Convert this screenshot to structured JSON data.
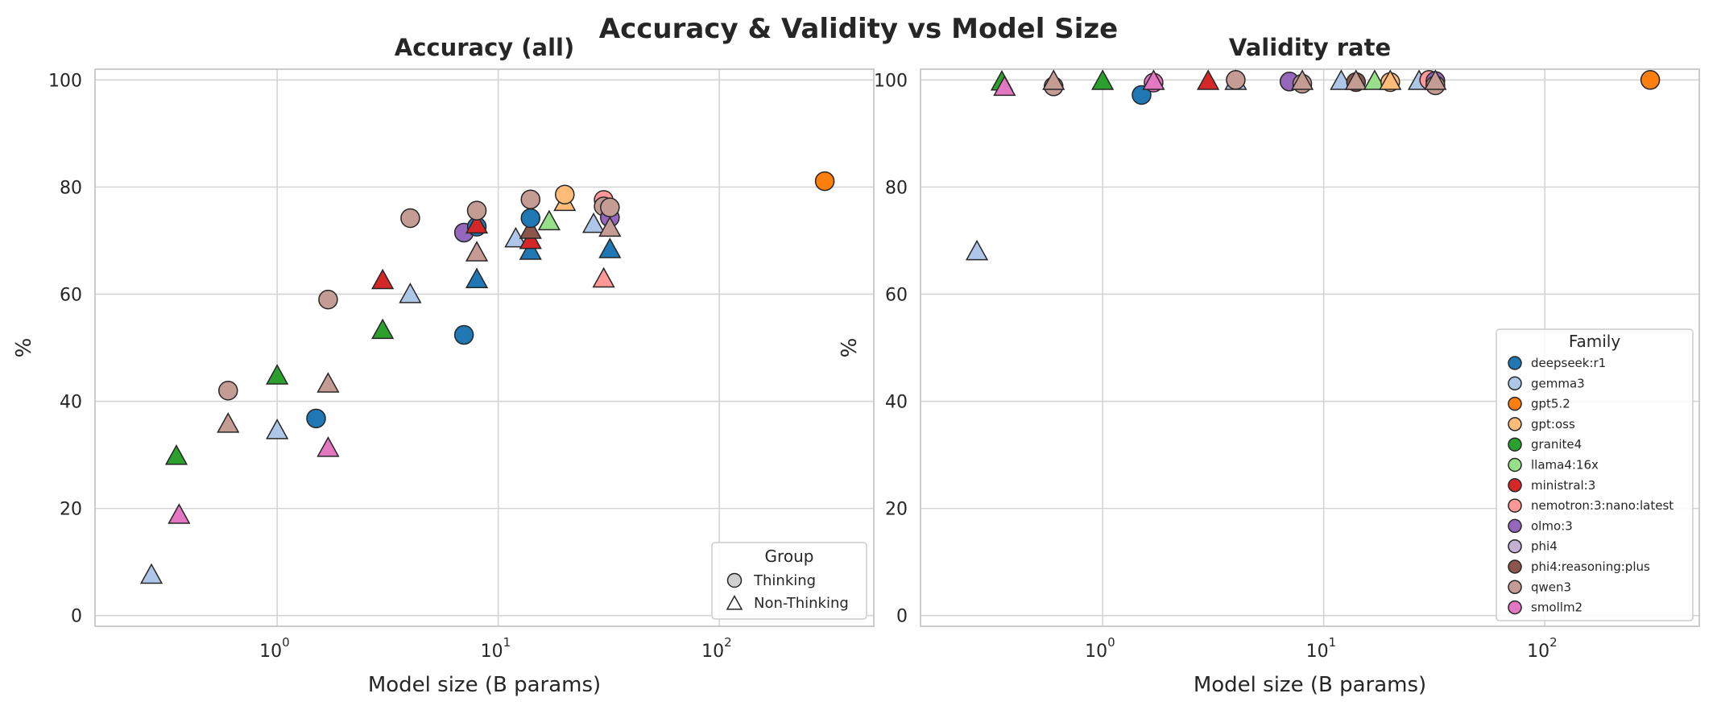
{
  "figure_title": "Accuracy & Validity vs Model Size",
  "colors": {
    "deepseek:r1": "#1f77b4",
    "gemma3": "#aec7e8",
    "gpt5.2": "#ff7f0e",
    "gpt:oss": "#ffbb78",
    "granite4": "#2ca02c",
    "llama4:16x": "#98df8a",
    "ministral:3": "#d62728",
    "nemotron:3:nano:latest": "#ff9896",
    "olmo:3": "#9467bd",
    "phi4": "#c5b0d5",
    "phi4:reasoning:plus": "#8c564b",
    "qwen3": "#c49c94",
    "smollm2": "#e377c2"
  },
  "chart_data": [
    {
      "type": "scatter",
      "title": "Accuracy (all)",
      "xlabel": "Model size (B params)",
      "ylabel": "%",
      "xscale": "log",
      "xlim": [
        0.15,
        500
      ],
      "ylim": [
        -2,
        102
      ],
      "x_ticks": [
        {
          "base": "10",
          "exp": "0",
          "value": 1
        },
        {
          "base": "10",
          "exp": "1",
          "value": 10
        },
        {
          "base": "10",
          "exp": "2",
          "value": 100
        }
      ],
      "y_ticks": [
        "0",
        "20",
        "40",
        "60",
        "80",
        "100"
      ],
      "grid": true,
      "legend": {
        "title": "Group",
        "placement": "lower-right",
        "entries": [
          {
            "label": "Thinking",
            "shape": "circle"
          },
          {
            "label": "Non-Thinking",
            "shape": "triangle"
          }
        ]
      },
      "points": [
        {
          "family": "gemma3",
          "group": "Non-Thinking",
          "x": 0.27,
          "y": 7.8
        },
        {
          "family": "smollm2",
          "group": "Non-Thinking",
          "x": 0.36,
          "y": 19
        },
        {
          "family": "granite4",
          "group": "Non-Thinking",
          "x": 0.35,
          "y": 30
        },
        {
          "family": "qwen3",
          "group": "Thinking",
          "x": 0.6,
          "y": 42
        },
        {
          "family": "qwen3",
          "group": "Non-Thinking",
          "x": 0.6,
          "y": 36
        },
        {
          "family": "gemma3",
          "group": "Non-Thinking",
          "x": 1.0,
          "y": 34.8
        },
        {
          "family": "granite4",
          "group": "Non-Thinking",
          "x": 1.0,
          "y": 45
        },
        {
          "family": "deepseek:r1",
          "group": "Thinking",
          "x": 1.5,
          "y": 36.8
        },
        {
          "family": "smollm2",
          "group": "Non-Thinking",
          "x": 1.7,
          "y": 31.5
        },
        {
          "family": "qwen3",
          "group": "Non-Thinking",
          "x": 1.7,
          "y": 43.5
        },
        {
          "family": "qwen3",
          "group": "Thinking",
          "x": 1.7,
          "y": 59
        },
        {
          "family": "granite4",
          "group": "Non-Thinking",
          "x": 3.0,
          "y": 53.5
        },
        {
          "family": "ministral:3",
          "group": "Non-Thinking",
          "x": 3.0,
          "y": 62.8
        },
        {
          "family": "gemma3",
          "group": "Non-Thinking",
          "x": 4.0,
          "y": 60.2
        },
        {
          "family": "qwen3",
          "group": "Thinking",
          "x": 4.0,
          "y": 74.2
        },
        {
          "family": "deepseek:r1",
          "group": "Thinking",
          "x": 7.0,
          "y": 52.4
        },
        {
          "family": "olmo:3",
          "group": "Thinking",
          "x": 7.0,
          "y": 71.5
        },
        {
          "family": "deepseek:r1",
          "group": "Non-Thinking",
          "x": 8.0,
          "y": 63
        },
        {
          "family": "qwen3",
          "group": "Non-Thinking",
          "x": 8.0,
          "y": 68
        },
        {
          "family": "deepseek:r1",
          "group": "Thinking",
          "x": 8.0,
          "y": 72.6
        },
        {
          "family": "ministral:3",
          "group": "Non-Thinking",
          "x": 8.0,
          "y": 73.2
        },
        {
          "family": "qwen3",
          "group": "Thinking",
          "x": 8.0,
          "y": 75.6
        },
        {
          "family": "gemma3",
          "group": "Non-Thinking",
          "x": 12.0,
          "y": 70.6
        },
        {
          "family": "deepseek:r1",
          "group": "Non-Thinking",
          "x": 14.0,
          "y": 68.3
        },
        {
          "family": "ministral:3",
          "group": "Non-Thinking",
          "x": 14.0,
          "y": 70.3
        },
        {
          "family": "phi4:reasoning:plus",
          "group": "Non-Thinking",
          "x": 14.0,
          "y": 72.2
        },
        {
          "family": "deepseek:r1",
          "group": "Thinking",
          "x": 14.0,
          "y": 74.2
        },
        {
          "family": "qwen3",
          "group": "Thinking",
          "x": 14.0,
          "y": 77.7
        },
        {
          "family": "llama4:16x",
          "group": "Non-Thinking",
          "x": 17.0,
          "y": 73.8
        },
        {
          "family": "gpt:oss",
          "group": "Non-Thinking",
          "x": 20.0,
          "y": 77.4
        },
        {
          "family": "gpt:oss",
          "group": "Thinking",
          "x": 20.0,
          "y": 78.6
        },
        {
          "family": "gemma3",
          "group": "Non-Thinking",
          "x": 27.0,
          "y": 73.3
        },
        {
          "family": "nemotron:3:nano:latest",
          "group": "Non-Thinking",
          "x": 30.0,
          "y": 63.1
        },
        {
          "family": "nemotron:3:nano:latest",
          "group": "Thinking",
          "x": 30.0,
          "y": 77.6
        },
        {
          "family": "qwen3",
          "group": "Thinking",
          "x": 30.0,
          "y": 76.4
        },
        {
          "family": "deepseek:r1",
          "group": "Non-Thinking",
          "x": 32.0,
          "y": 68.6
        },
        {
          "family": "olmo:3",
          "group": "Thinking",
          "x": 32.0,
          "y": 74.3
        },
        {
          "family": "qwen3",
          "group": "Non-Thinking",
          "x": 32.0,
          "y": 72.6
        },
        {
          "family": "qwen3",
          "group": "Thinking",
          "x": 32.0,
          "y": 76.2
        },
        {
          "family": "gpt5.2",
          "group": "Thinking",
          "x": 300.0,
          "y": 81.1
        }
      ]
    },
    {
      "type": "scatter",
      "title": "Validity rate",
      "xlabel": "Model size (B params)",
      "ylabel": "%",
      "xscale": "log",
      "xlim": [
        0.15,
        500
      ],
      "ylim": [
        -2,
        102
      ],
      "x_ticks": [
        {
          "base": "10",
          "exp": "0",
          "value": 1
        },
        {
          "base": "10",
          "exp": "1",
          "value": 10
        },
        {
          "base": "10",
          "exp": "2",
          "value": 100
        }
      ],
      "y_ticks": [
        "0",
        "20",
        "40",
        "60",
        "80",
        "100"
      ],
      "grid": true,
      "legend": {
        "title": "Family",
        "placement": "lower-right",
        "entries": [
          {
            "label": "deepseek:r1"
          },
          {
            "label": "gemma3"
          },
          {
            "label": "gpt5.2"
          },
          {
            "label": "gpt:oss"
          },
          {
            "label": "granite4"
          },
          {
            "label": "llama4:16x"
          },
          {
            "label": "ministral:3"
          },
          {
            "label": "nemotron:3:nano:latest"
          },
          {
            "label": "olmo:3"
          },
          {
            "label": "phi4"
          },
          {
            "label": "phi4:reasoning:plus"
          },
          {
            "label": "qwen3"
          },
          {
            "label": "smollm2"
          }
        ]
      },
      "points": [
        {
          "family": "gemma3",
          "group": "Non-Thinking",
          "x": 0.27,
          "y": 68.2
        },
        {
          "family": "granite4",
          "group": "Non-Thinking",
          "x": 0.35,
          "y": 99.9
        },
        {
          "family": "smollm2",
          "group": "Non-Thinking",
          "x": 0.36,
          "y": 98.9
        },
        {
          "family": "qwen3",
          "group": "Thinking",
          "x": 0.6,
          "y": 98.8
        },
        {
          "family": "qwen3",
          "group": "Non-Thinking",
          "x": 0.6,
          "y": 100
        },
        {
          "family": "granite4",
          "group": "Non-Thinking",
          "x": 1.0,
          "y": 100
        },
        {
          "family": "deepseek:r1",
          "group": "Thinking",
          "x": 1.5,
          "y": 97.2
        },
        {
          "family": "smollm2",
          "group": "Thinking",
          "x": 1.7,
          "y": 99.5
        },
        {
          "family": "smollm2",
          "group": "Non-Thinking",
          "x": 1.7,
          "y": 100
        },
        {
          "family": "ministral:3",
          "group": "Non-Thinking",
          "x": 3.0,
          "y": 100
        },
        {
          "family": "gemma3",
          "group": "Non-Thinking",
          "x": 4.0,
          "y": 100
        },
        {
          "family": "qwen3",
          "group": "Thinking",
          "x": 4.0,
          "y": 100
        },
        {
          "family": "olmo:3",
          "group": "Thinking",
          "x": 7.0,
          "y": 99.7
        },
        {
          "family": "qwen3",
          "group": "Thinking",
          "x": 8.0,
          "y": 99.3
        },
        {
          "family": "qwen3",
          "group": "Non-Thinking",
          "x": 8.0,
          "y": 100
        },
        {
          "family": "gemma3",
          "group": "Non-Thinking",
          "x": 12.0,
          "y": 100
        },
        {
          "family": "phi4:reasoning:plus",
          "group": "Thinking",
          "x": 14.0,
          "y": 99.6
        },
        {
          "family": "qwen3",
          "group": "Non-Thinking",
          "x": 14.0,
          "y": 100
        },
        {
          "family": "llama4:16x",
          "group": "Non-Thinking",
          "x": 17.0,
          "y": 100
        },
        {
          "family": "gpt:oss",
          "group": "Thinking",
          "x": 20.0,
          "y": 99.6
        },
        {
          "family": "gpt:oss",
          "group": "Non-Thinking",
          "x": 20.0,
          "y": 100
        },
        {
          "family": "gemma3",
          "group": "Non-Thinking",
          "x": 27.0,
          "y": 100
        },
        {
          "family": "nemotron:3:nano:latest",
          "group": "Thinking",
          "x": 30.0,
          "y": 100
        },
        {
          "family": "olmo:3",
          "group": "Thinking",
          "x": 32.0,
          "y": 99.8
        },
        {
          "family": "qwen3",
          "group": "Thinking",
          "x": 32.0,
          "y": 99.0
        },
        {
          "family": "qwen3",
          "group": "Non-Thinking",
          "x": 32.0,
          "y": 100
        },
        {
          "family": "gpt5.2",
          "group": "Thinking",
          "x": 300.0,
          "y": 100
        }
      ]
    }
  ]
}
